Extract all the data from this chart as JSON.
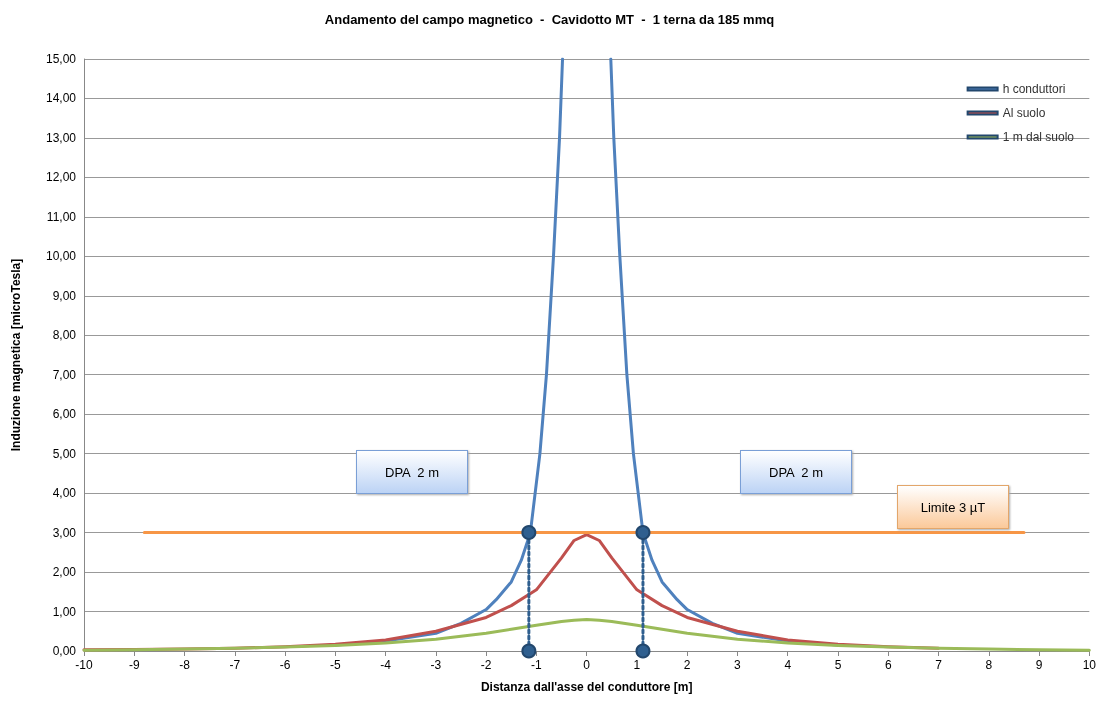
{
  "chart_data": {
    "type": "line",
    "title": "Andamento del campo magnetico  -  Cavidotto MT  -  1 terna da 185 mmq",
    "xlabel": "Distanza dall'asse del conduttore [m]",
    "ylabel": "Induzione magnetica [microTesla]",
    "xlim": [
      -10,
      10
    ],
    "xticks": [
      -10,
      -9,
      -8,
      -7,
      -6,
      -5,
      -4,
      -3,
      -2,
      -1,
      0,
      1,
      2,
      3,
      4,
      5,
      6,
      7,
      8,
      9,
      10
    ],
    "ylim": [
      0,
      15
    ],
    "yticks": [
      {
        "value": 0,
        "label": "0,00"
      },
      {
        "value": 1,
        "label": "1,00"
      },
      {
        "value": 2,
        "label": "2,00"
      },
      {
        "value": 3,
        "label": "3,00"
      },
      {
        "value": 4,
        "label": "4,00"
      },
      {
        "value": 5,
        "label": "5,00"
      },
      {
        "value": 6,
        "label": "6,00"
      },
      {
        "value": 7,
        "label": "7,00"
      },
      {
        "value": 8,
        "label": "8,00"
      },
      {
        "value": 9,
        "label": "9,00"
      },
      {
        "value": 10,
        "label": "10,00"
      },
      {
        "value": 11,
        "label": "11,00"
      },
      {
        "value": 12,
        "label": "12,00"
      },
      {
        "value": 13,
        "label": "13,00"
      },
      {
        "value": 14,
        "label": "14,00"
      },
      {
        "value": 15,
        "label": "15,00"
      }
    ],
    "grid": "y",
    "legend": "top right",
    "marker": "none",
    "line_style": "solid",
    "series": [
      {
        "name": "h conduttori",
        "color": "#4f81bd",
        "x": [
          -5,
          -4,
          -3,
          -2.5,
          -2,
          -1.8,
          -1.5,
          -1.3,
          -1.12,
          -0.93,
          -0.8,
          -0.66,
          -0.54,
          -0.48,
          0,
          0.48,
          0.54,
          0.66,
          0.8,
          0.93,
          1.12,
          1.3,
          1.5,
          1.8,
          2,
          2.5,
          3,
          4,
          5
        ],
        "values": [
          0.15,
          0.25,
          0.45,
          0.7,
          1.05,
          1.3,
          1.75,
          2.3,
          3,
          5,
          7,
          10,
          13,
          15,
          null,
          15,
          13,
          10,
          7,
          5,
          3,
          2.3,
          1.75,
          1.3,
          1.05,
          0.7,
          0.45,
          0.25,
          0.15
        ]
      },
      {
        "name": "Al suolo",
        "color": "#c0504d",
        "x": [
          -10,
          -9,
          -8,
          -7,
          -6,
          -5,
          -4,
          -3,
          -2,
          -1.5,
          -1,
          -0.5,
          -0.25,
          0,
          0.25,
          0.5,
          1,
          1.5,
          2,
          3,
          4,
          5,
          6,
          7
        ],
        "values": [
          0.03,
          0.04,
          0.05,
          0.07,
          0.11,
          0.17,
          0.28,
          0.5,
          0.85,
          1.15,
          1.55,
          2.36,
          2.8,
          2.95,
          2.8,
          2.36,
          1.55,
          1.15,
          0.85,
          0.5,
          0.28,
          0.17,
          0.11,
          0.07
        ]
      },
      {
        "name": "1 m dal suolo",
        "color": "#9bbb59",
        "x": [
          -10,
          -9,
          -8,
          -7,
          -6,
          -5,
          -4,
          -3,
          -2,
          -1.5,
          -1,
          -0.5,
          -0.25,
          0,
          0.25,
          0.5,
          1,
          1.5,
          2,
          3,
          4,
          5,
          6,
          7,
          8,
          9,
          10
        ],
        "values": [
          0.02,
          0.03,
          0.05,
          0.07,
          0.1,
          0.14,
          0.2,
          0.3,
          0.45,
          0.55,
          0.65,
          0.75,
          0.78,
          0.8,
          0.78,
          0.75,
          0.65,
          0.55,
          0.45,
          0.3,
          0.2,
          0.14,
          0.1,
          0.07,
          0.05,
          0.03,
          0.02
        ]
      },
      {
        "color": "#f79646",
        "x": [
          -8.8,
          8.7
        ],
        "values": [
          3,
          3
        ]
      },
      {
        "color": "#2f5f8f",
        "x": [
          -1.15,
          -1.15
        ],
        "values": [
          0,
          3
        ],
        "marker": "circle",
        "line_style": "dotted"
      },
      {
        "color": "#2f5f8f",
        "x": [
          1.12,
          1.12
        ],
        "values": [
          0,
          3
        ],
        "marker": "circle",
        "line_style": "dotted"
      }
    ],
    "annotations": [
      "DPA  2 m",
      "DPA  2 m",
      "Limite 3 µT"
    ]
  }
}
